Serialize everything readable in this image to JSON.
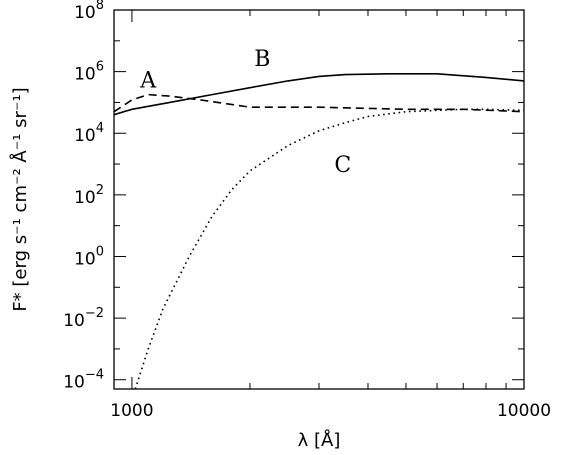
{
  "chart_data": {
    "type": "line",
    "x_scale": "log",
    "y_scale": "log",
    "xlim": [
      900,
      10000
    ],
    "ylim": [
      5e-05,
      100000000
    ],
    "xlabel": "λ [Å]",
    "ylabel": "F* [erg s⁻¹ cm⁻² Å⁻¹ sr⁻¹]",
    "x_ticks": [
      {
        "value": 1000,
        "label": "1000"
      },
      {
        "value": 10000,
        "label": "10000"
      }
    ],
    "y_ticks": [
      {
        "exp": -4,
        "label_base": "10",
        "label_exp": "−4"
      },
      {
        "exp": -2,
        "label_base": "10",
        "label_exp": "−2"
      },
      {
        "exp": 0,
        "label_base": "10",
        "label_exp": "0"
      },
      {
        "exp": 2,
        "label_base": "10",
        "label_exp": "2"
      },
      {
        "exp": 4,
        "label_base": "10",
        "label_exp": "4"
      },
      {
        "exp": 6,
        "label_base": "10",
        "label_exp": "6"
      },
      {
        "exp": 8,
        "label_base": "10",
        "label_exp": "8"
      }
    ],
    "grid": false,
    "series": [
      {
        "name": "A",
        "style": "dashed",
        "label_at": {
          "x": 1100,
          "y": 300000
        },
        "points": [
          [
            900,
            50000
          ],
          [
            1000,
            120000
          ],
          [
            1100,
            180000
          ],
          [
            1250,
            160000
          ],
          [
            1500,
            120000
          ],
          [
            2000,
            70000
          ],
          [
            3000,
            70000
          ],
          [
            5000,
            60000
          ],
          [
            7000,
            60000
          ],
          [
            10000,
            50000
          ]
        ]
      },
      {
        "name": "B",
        "style": "solid",
        "label_at": {
          "x": 2150,
          "y": 1500000
        },
        "points": [
          [
            900,
            40000
          ],
          [
            1000,
            60000
          ],
          [
            1300,
            110000
          ],
          [
            1600,
            180000
          ],
          [
            2000,
            300000
          ],
          [
            2500,
            500000
          ],
          [
            3000,
            700000
          ],
          [
            3500,
            800000
          ],
          [
            4500,
            850000
          ],
          [
            6000,
            850000
          ],
          [
            8000,
            650000
          ],
          [
            10000,
            500000
          ]
        ]
      },
      {
        "name": "C",
        "style": "dotted",
        "label_at": {
          "x": 3450,
          "y": 550
        },
        "points": [
          [
            1020,
            5e-05
          ],
          [
            1100,
            0.001
          ],
          [
            1200,
            0.02
          ],
          [
            1400,
            1
          ],
          [
            1600,
            20
          ],
          [
            1800,
            150
          ],
          [
            2000,
            600
          ],
          [
            2500,
            4000
          ],
          [
            3000,
            12000
          ],
          [
            3500,
            22000
          ],
          [
            4000,
            35000
          ],
          [
            5000,
            50000
          ],
          [
            6000,
            55000
          ],
          [
            7000,
            60000
          ],
          [
            8000,
            60000
          ],
          [
            10000,
            55000
          ]
        ]
      }
    ]
  }
}
